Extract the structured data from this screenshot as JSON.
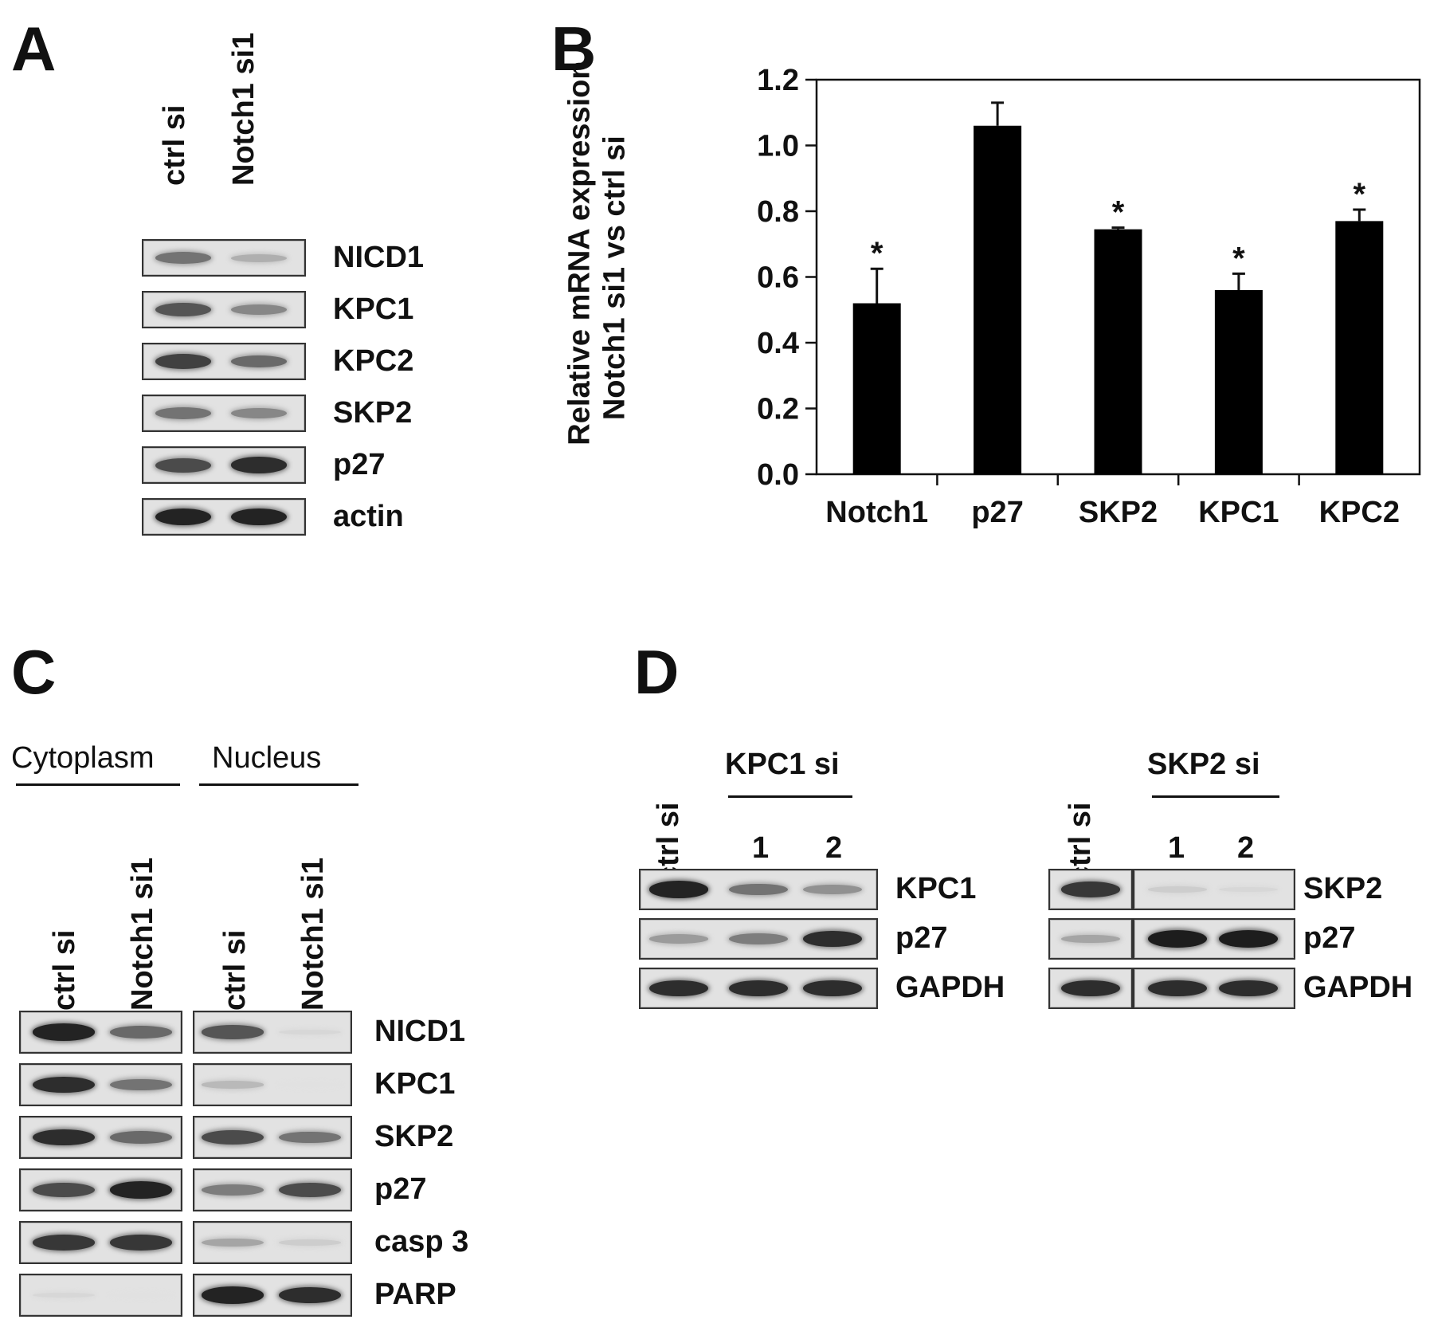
{
  "panelA": {
    "letter": "A",
    "lanes": [
      "ctrl si",
      "Notch1 si1"
    ],
    "rows": [
      {
        "label": "NICD1",
        "intensity": [
          0.55,
          0.25
        ]
      },
      {
        "label": "KPC1",
        "intensity": [
          0.7,
          0.45
        ]
      },
      {
        "label": "KPC2",
        "intensity": [
          0.8,
          0.6
        ]
      },
      {
        "label": "SKP2",
        "intensity": [
          0.55,
          0.45
        ]
      },
      {
        "label": "p27",
        "intensity": [
          0.75,
          0.9
        ]
      },
      {
        "label": "actin",
        "intensity": [
          0.95,
          0.95
        ]
      }
    ]
  },
  "panelB": {
    "letter": "B",
    "ylabel_line1": "Relative mRNA expression",
    "ylabel_line2": "Notch1 si1 vs ctrl si"
  },
  "chart_data": {
    "type": "bar",
    "categories": [
      "Notch1",
      "p27",
      "SKP2",
      "KPC1",
      "KPC2"
    ],
    "values": [
      0.52,
      1.06,
      0.745,
      0.56,
      0.77
    ],
    "errors": [
      0.105,
      0.07,
      0.005,
      0.05,
      0.035
    ],
    "significance": [
      "*",
      "",
      "*",
      "*",
      "*"
    ],
    "ylim": [
      0,
      1.2
    ],
    "yticks": [
      "0.0",
      "0.2",
      "0.4",
      "0.6",
      "0.8",
      "1.0",
      "1.2"
    ],
    "bar_color": "#000000"
  },
  "panelC": {
    "letter": "C",
    "group1": "Cytoplasm",
    "group2": "Nucleus",
    "lanes": [
      "ctrl si",
      "Notch1 si1",
      "ctrl si",
      "Notch1 si1"
    ],
    "rows": [
      {
        "label": "NICD1",
        "intensity": [
          0.95,
          0.6,
          0.7,
          0.05
        ]
      },
      {
        "label": "KPC1",
        "intensity": [
          0.9,
          0.55,
          0.2,
          0.0
        ]
      },
      {
        "label": "SKP2",
        "intensity": [
          0.9,
          0.6,
          0.75,
          0.55
        ]
      },
      {
        "label": "p27",
        "intensity": [
          0.75,
          0.95,
          0.5,
          0.75
        ]
      },
      {
        "label": "casp 3",
        "intensity": [
          0.85,
          0.85,
          0.3,
          0.1
        ]
      },
      {
        "label": "PARP",
        "intensity": [
          0.05,
          0.0,
          0.95,
          0.9
        ]
      }
    ]
  },
  "panelD": {
    "letter": "D",
    "left": {
      "ctrl": "ctrl si",
      "group": "KPC1 si",
      "nums": [
        "1",
        "2"
      ],
      "rows": [
        {
          "label": "KPC1",
          "intensity": [
            0.95,
            0.55,
            0.4
          ]
        },
        {
          "label": "p27",
          "intensity": [
            0.35,
            0.5,
            0.9
          ]
        },
        {
          "label": "GAPDH",
          "intensity": [
            0.9,
            0.9,
            0.9
          ]
        }
      ]
    },
    "right": {
      "ctrl": "ctrl si",
      "group": "SKP2 si",
      "nums": [
        "1",
        "2"
      ],
      "rows": [
        {
          "label": "SKP2",
          "intensity": [
            0.85,
            0.1,
            0.05
          ]
        },
        {
          "label": "p27",
          "intensity": [
            0.3,
            0.98,
            0.98
          ]
        },
        {
          "label": "GAPDH",
          "intensity": [
            0.9,
            0.9,
            0.9
          ]
        }
      ]
    }
  }
}
